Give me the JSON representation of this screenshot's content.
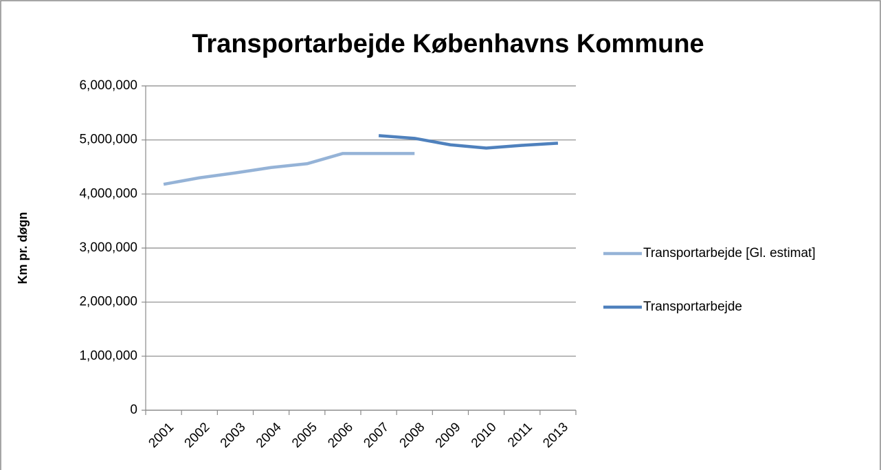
{
  "chart_data": {
    "type": "line",
    "title": "Transportarbejde Københavns Kommune",
    "y_label": "Km pr. døgn",
    "categories": [
      "2001",
      "2002",
      "2003",
      "2004",
      "2005",
      "2006",
      "2007",
      "2008",
      "2009",
      "2010",
      "2011",
      "2013"
    ],
    "series": [
      {
        "name": "Transportarbejde [Gl. estimat]",
        "color": "#95b3d7",
        "values": [
          4180000,
          4300000,
          4390000,
          4490000,
          4560000,
          4750000,
          4750000,
          4750000,
          null,
          null,
          null,
          null
        ]
      },
      {
        "name": "Transportarbejde",
        "color": "#4f81bd",
        "values": [
          null,
          null,
          null,
          null,
          null,
          null,
          5080000,
          5030000,
          4910000,
          4850000,
          4900000,
          4940000
        ]
      }
    ],
    "ylim": [
      0,
      6000000
    ],
    "yticks": [
      0,
      {
        "value": 1000000,
        "label": "1,000,000"
      },
      {
        "value": 2000000,
        "label": "2,000,000"
      },
      {
        "value": 3000000,
        "label": "3,000,000"
      },
      {
        "value": 4000000,
        "label": "4,000,000"
      },
      {
        "value": 5000000,
        "label": "5,000,000"
      },
      {
        "value": 6000000,
        "label": "6,000,000"
      }
    ],
    "grid": true,
    "legend": "right"
  }
}
